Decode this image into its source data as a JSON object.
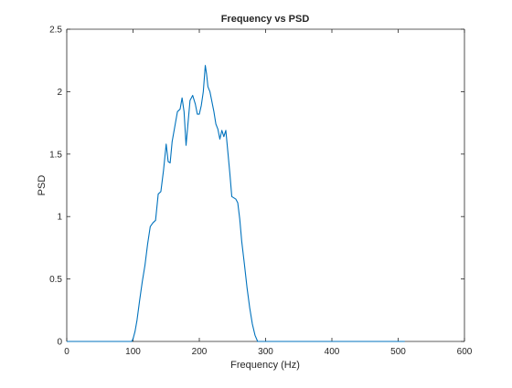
{
  "chart_data": {
    "type": "line",
    "title": "Frequency vs PSD",
    "xlabel": "Frequency (Hz)",
    "ylabel": "PSD",
    "xlim": [
      0,
      600
    ],
    "ylim": [
      0,
      2.5
    ],
    "xticks": [
      0,
      100,
      200,
      300,
      400,
      500,
      600
    ],
    "yticks": [
      0,
      0.5,
      1,
      1.5,
      2,
      2.5
    ],
    "xtick_labels": [
      "0",
      "100",
      "200",
      "300",
      "400",
      "500",
      "600"
    ],
    "ytick_labels": [
      "0",
      "0.5",
      "1",
      "1.5",
      "2",
      "2.5"
    ],
    "grid": false,
    "series": [
      {
        "color": "#0072bd",
        "x": [
          0,
          20,
          40,
          60,
          80,
          98,
          100,
          103,
          106,
          110,
          114,
          118,
          122,
          126,
          130,
          134,
          138,
          142,
          146,
          150,
          153,
          156,
          159,
          163,
          167,
          171,
          174,
          177,
          180,
          183,
          186,
          190,
          194,
          197,
          200,
          203,
          206,
          209,
          211,
          213,
          216,
          219,
          222,
          225,
          228,
          231,
          234,
          237,
          240,
          243,
          246,
          249,
          252,
          255,
          258,
          261,
          264,
          268,
          272,
          276,
          280,
          284,
          288,
          291,
          294,
          300,
          350,
          400,
          450,
          500,
          510
        ],
        "y": [
          0,
          0,
          0,
          0,
          0,
          0,
          0.02,
          0.08,
          0.17,
          0.33,
          0.48,
          0.61,
          0.78,
          0.92,
          0.95,
          0.97,
          1.18,
          1.2,
          1.37,
          1.58,
          1.44,
          1.43,
          1.6,
          1.72,
          1.84,
          1.86,
          1.95,
          1.84,
          1.57,
          1.75,
          1.93,
          1.97,
          1.9,
          1.82,
          1.82,
          1.89,
          2.0,
          2.21,
          2.14,
          2.04,
          2.0,
          1.92,
          1.84,
          1.74,
          1.7,
          1.62,
          1.69,
          1.64,
          1.69,
          1.52,
          1.35,
          1.16,
          1.15,
          1.14,
          1.11,
          0.98,
          0.8,
          0.62,
          0.43,
          0.27,
          0.14,
          0.05,
          0,
          0,
          0,
          0,
          0,
          0,
          0,
          0,
          0
        ]
      }
    ]
  }
}
